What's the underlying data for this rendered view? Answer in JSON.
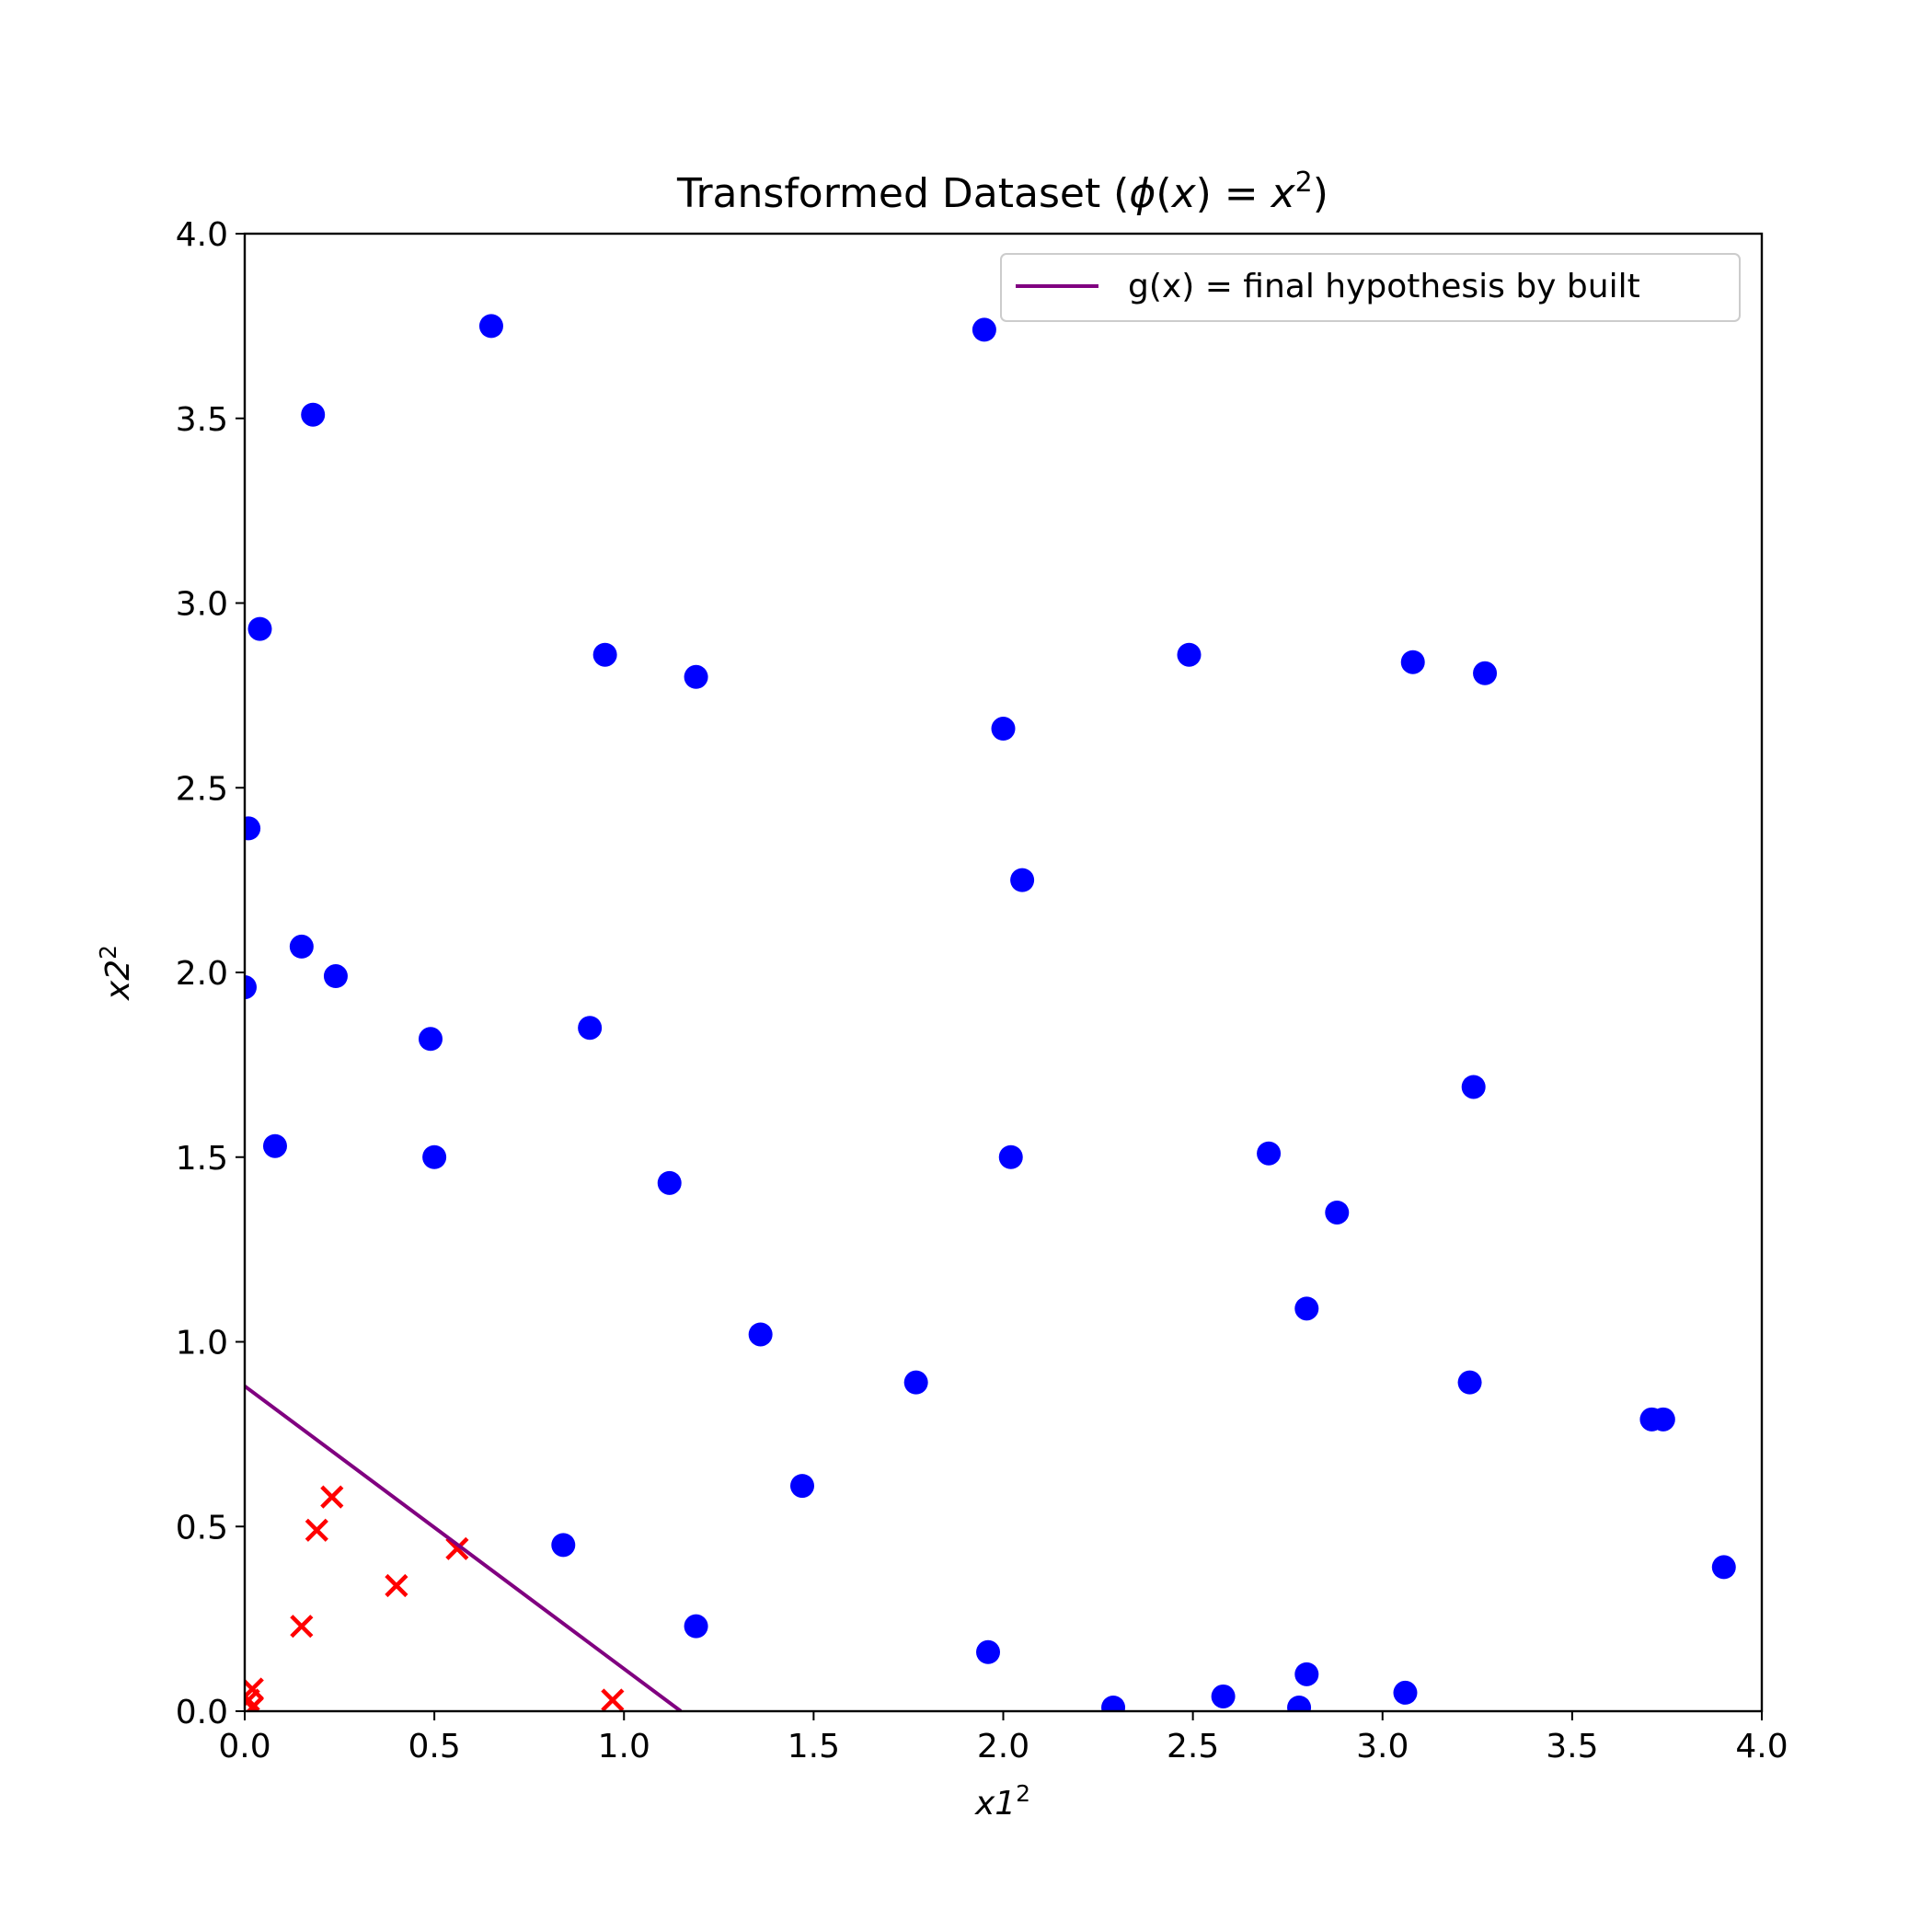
{
  "chart_data": {
    "type": "scatter",
    "title": {
      "prefix": "Transformed Dataset (",
      "phi": "ϕ",
      "open": "(",
      "arg": "x",
      "mid": ") = ",
      "rhs": "x",
      "sup": "2",
      "close": ")"
    },
    "xlabel": {
      "base": "x1",
      "sup": "2"
    },
    "ylabel": {
      "base": "x2",
      "sup": "2"
    },
    "xlim": [
      0,
      4
    ],
    "ylim": [
      0,
      4
    ],
    "x_ticks": [
      0.0,
      0.5,
      1.0,
      1.5,
      2.0,
      2.5,
      3.0,
      3.5,
      4.0
    ],
    "y_ticks": [
      0.0,
      0.5,
      1.0,
      1.5,
      2.0,
      2.5,
      3.0,
      3.5,
      4.0
    ],
    "x_tick_labels": [
      "0.0",
      "0.5",
      "1.0",
      "1.5",
      "2.0",
      "2.5",
      "3.0",
      "3.5",
      "4.0"
    ],
    "y_tick_labels": [
      "0.0",
      "0.5",
      "1.0",
      "1.5",
      "2.0",
      "2.5",
      "3.0",
      "3.5",
      "4.0"
    ],
    "grid": false,
    "legend": {
      "placement": "top-right",
      "entries": [
        "g(x) = final hypothesis by built"
      ]
    },
    "series": [
      {
        "marker": "circle",
        "color": "#0000ff",
        "points": [
          [
            0.65,
            3.75
          ],
          [
            1.95,
            3.74
          ],
          [
            0.18,
            3.51
          ],
          [
            0.04,
            2.93
          ],
          [
            0.95,
            2.86
          ],
          [
            1.19,
            2.8
          ],
          [
            2.49,
            2.86
          ],
          [
            3.08,
            2.84
          ],
          [
            3.27,
            2.81
          ],
          [
            2.0,
            2.66
          ],
          [
            0.01,
            2.39
          ],
          [
            2.05,
            2.25
          ],
          [
            0.15,
            2.07
          ],
          [
            0.24,
            1.99
          ],
          [
            0.0,
            1.96
          ],
          [
            0.49,
            1.82
          ],
          [
            0.91,
            1.85
          ],
          [
            0.08,
            1.53
          ],
          [
            0.5,
            1.5
          ],
          [
            1.12,
            1.43
          ],
          [
            2.02,
            1.5
          ],
          [
            2.7,
            1.51
          ],
          [
            3.24,
            1.69
          ],
          [
            2.88,
            1.35
          ],
          [
            1.36,
            1.02
          ],
          [
            2.8,
            1.09
          ],
          [
            1.77,
            0.89
          ],
          [
            3.23,
            0.89
          ],
          [
            3.71,
            0.79
          ],
          [
            3.74,
            0.79
          ],
          [
            1.47,
            0.61
          ],
          [
            0.84,
            0.45
          ],
          [
            3.9,
            0.39
          ],
          [
            1.19,
            0.23
          ],
          [
            1.96,
            0.16
          ],
          [
            2.8,
            0.1
          ],
          [
            3.06,
            0.05
          ],
          [
            2.58,
            0.04
          ],
          [
            2.29,
            0.01
          ],
          [
            2.78,
            0.01
          ]
        ]
      },
      {
        "marker": "x",
        "color": "#ff0000",
        "points": [
          [
            0.23,
            0.58
          ],
          [
            0.19,
            0.49
          ],
          [
            0.56,
            0.44
          ],
          [
            0.4,
            0.34
          ],
          [
            0.15,
            0.23
          ],
          [
            0.97,
            0.03
          ],
          [
            0.02,
            0.06
          ],
          [
            0.01,
            0.03
          ],
          [
            0.02,
            0.01
          ]
        ]
      },
      {
        "name": "g(x) = final hypothesis by built",
        "type": "line",
        "color": "#800080",
        "points": [
          [
            0.0,
            0.88
          ],
          [
            1.15,
            0.0
          ]
        ]
      }
    ]
  }
}
